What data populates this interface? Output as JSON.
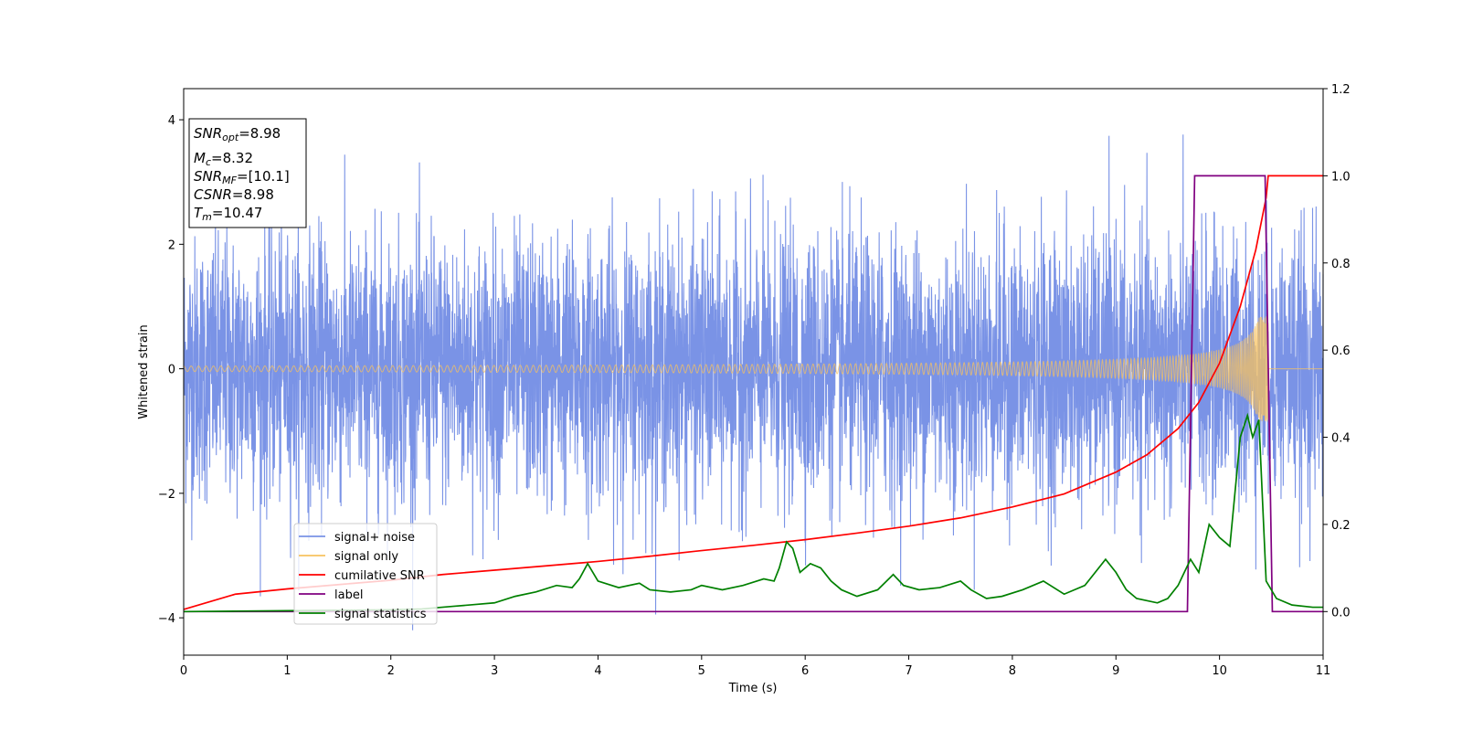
{
  "chart_data": {
    "type": "line",
    "title": "",
    "xlabel": "Time (s)",
    "ylabel": "Whitened strain",
    "xlim": [
      0,
      11
    ],
    "ylim": [
      -4.6,
      4.5
    ],
    "y2lim": [
      -0.1,
      1.2
    ],
    "xticks": [
      "0",
      "1",
      "2",
      "3",
      "4",
      "5",
      "6",
      "7",
      "8",
      "9",
      "10",
      "11"
    ],
    "yticks": [
      "4",
      "2",
      "0",
      "−2",
      "−4"
    ],
    "y2ticks": [
      "1.2",
      "1.0",
      "0.8",
      "0.6",
      "0.4",
      "0.2",
      "0.0"
    ],
    "grid": false,
    "legend_position": "lower-left",
    "info_box": {
      "snr_opt": {
        "sym": "SNR",
        "sub": "opt",
        "value": "=8.98"
      },
      "mc": {
        "sym": "M",
        "sub": "c",
        "value": "=8.32"
      },
      "snr_mf": {
        "sym": "SNR",
        "sub": "MF",
        "value": "=[10.1]"
      },
      "csnr": {
        "sym": "CSNR",
        "sub": "",
        "value": "=8.98"
      },
      "tm": {
        "sym": "T",
        "sub": "m",
        "value": "=10.47"
      }
    },
    "colors": {
      "signal_noise": "#7a93e6",
      "signal_only": "#f7c25f",
      "cumulative_snr": "#ff0000",
      "label": "#800080",
      "signal_statistics": "#008000"
    },
    "series": [
      {
        "name": "signal+ noise",
        "axis": "left",
        "color": "#7a93e6",
        "description": "Whitened noisy strain, approx. Gaussian with sigma ~1, peaks near +/-4"
      },
      {
        "name": "signal only",
        "axis": "left",
        "color": "#f7c25f",
        "description": "Chirp with amplitude growing from ~0.02 to ~0.8, merger at t=10.47s"
      },
      {
        "name": "cumilative SNR",
        "axis": "right",
        "color": "#ff0000",
        "x": [
          0,
          0.5,
          1,
          1.5,
          2,
          2.5,
          3,
          3.5,
          4,
          4.5,
          5,
          5.5,
          6,
          6.5,
          7,
          7.5,
          8,
          8.5,
          9,
          9.3,
          9.6,
          9.8,
          10,
          10.2,
          10.35,
          10.45,
          10.47,
          11
        ],
        "values": [
          0.005,
          0.04,
          0.052,
          0.062,
          0.072,
          0.085,
          0.095,
          0.105,
          0.115,
          0.127,
          0.14,
          0.152,
          0.165,
          0.18,
          0.196,
          0.215,
          0.24,
          0.27,
          0.32,
          0.36,
          0.42,
          0.48,
          0.57,
          0.7,
          0.83,
          0.95,
          1.0,
          1.0
        ]
      },
      {
        "name": "label",
        "axis": "right",
        "color": "#800080",
        "x": [
          0,
          9.69,
          9.76,
          10.44,
          10.51,
          11
        ],
        "values": [
          0,
          0,
          1,
          1,
          0,
          0
        ]
      },
      {
        "name": "signal statistics",
        "axis": "right",
        "color": "#008000",
        "x": [
          0,
          0.5,
          1,
          1.5,
          2,
          2.3,
          2.6,
          2.8,
          3.0,
          3.2,
          3.4,
          3.6,
          3.75,
          3.82,
          3.9,
          4.0,
          4.2,
          4.4,
          4.5,
          4.7,
          4.9,
          5.0,
          5.2,
          5.4,
          5.6,
          5.7,
          5.75,
          5.82,
          5.88,
          5.95,
          6.05,
          6.15,
          6.25,
          6.35,
          6.5,
          6.7,
          6.85,
          6.95,
          7.1,
          7.3,
          7.5,
          7.6,
          7.75,
          7.9,
          8.1,
          8.3,
          8.5,
          8.7,
          8.9,
          9.0,
          9.1,
          9.2,
          9.4,
          9.5,
          9.6,
          9.72,
          9.8,
          9.9,
          10.0,
          10.1,
          10.2,
          10.27,
          10.32,
          10.38,
          10.45,
          10.55,
          10.7,
          10.9,
          11
        ],
        "values": [
          0.0,
          0.001,
          0.002,
          0.003,
          0.004,
          0.006,
          0.012,
          0.016,
          0.02,
          0.035,
          0.045,
          0.06,
          0.055,
          0.075,
          0.11,
          0.07,
          0.055,
          0.065,
          0.05,
          0.045,
          0.05,
          0.06,
          0.05,
          0.06,
          0.075,
          0.07,
          0.1,
          0.16,
          0.145,
          0.09,
          0.11,
          0.1,
          0.07,
          0.05,
          0.035,
          0.05,
          0.085,
          0.06,
          0.05,
          0.055,
          0.07,
          0.05,
          0.03,
          0.035,
          0.05,
          0.07,
          0.04,
          0.06,
          0.12,
          0.09,
          0.05,
          0.03,
          0.02,
          0.03,
          0.06,
          0.12,
          0.09,
          0.2,
          0.17,
          0.15,
          0.4,
          0.45,
          0.4,
          0.44,
          0.07,
          0.03,
          0.015,
          0.01,
          0.01
        ]
      }
    ]
  }
}
